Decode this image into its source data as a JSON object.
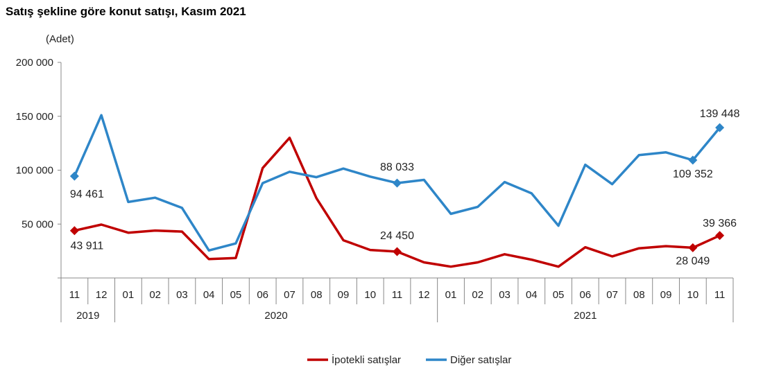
{
  "chart_data": {
    "type": "line",
    "title": "Satış şekline göre konut satışı, Kasım 2021",
    "ylabel": "(Adet)",
    "ylim": [
      0,
      200000
    ],
    "yticks": [
      "",
      "50 000",
      "100 000",
      "150 000",
      "200 000"
    ],
    "ytick_values": [
      0,
      50000,
      100000,
      150000,
      200000
    ],
    "categories": [
      "11",
      "12",
      "01",
      "02",
      "03",
      "04",
      "05",
      "06",
      "07",
      "08",
      "09",
      "10",
      "11",
      "12",
      "01",
      "02",
      "03",
      "04",
      "05",
      "06",
      "07",
      "08",
      "09",
      "10",
      "11"
    ],
    "year_groups": [
      {
        "label": "2019",
        "start": 0,
        "end": 1
      },
      {
        "label": "2020",
        "start": 2,
        "end": 13
      },
      {
        "label": "2021",
        "start": 14,
        "end": 24
      }
    ],
    "legend_position": "bottom",
    "series": [
      {
        "name": "İpotekli satışlar",
        "color": "#C00000",
        "values": [
          43911,
          49500,
          42000,
          44000,
          43000,
          17500,
          18500,
          102000,
          130000,
          74000,
          35000,
          26000,
          24450,
          14500,
          10500,
          14500,
          22000,
          17000,
          10500,
          28500,
          20000,
          27500,
          29500,
          28049,
          39366
        ],
        "labels": [
          {
            "index": 0,
            "text": "43 911"
          },
          {
            "index": 12,
            "text": "24 450"
          },
          {
            "index": 23,
            "text": "28 049"
          },
          {
            "index": 24,
            "text": "39 366"
          }
        ]
      },
      {
        "name": "Diğer satışlar",
        "color": "#2E86C8",
        "values": [
          94461,
          151000,
          70500,
          74500,
          65000,
          25500,
          32000,
          88000,
          98500,
          93500,
          101500,
          94000,
          88033,
          91000,
          59500,
          66000,
          89000,
          78500,
          48500,
          105000,
          87000,
          114000,
          116500,
          109352,
          139448
        ],
        "labels": [
          {
            "index": 0,
            "text": "94 461"
          },
          {
            "index": 12,
            "text": "88 033"
          },
          {
            "index": 23,
            "text": "109 352"
          },
          {
            "index": 24,
            "text": "139 448"
          }
        ]
      }
    ]
  }
}
